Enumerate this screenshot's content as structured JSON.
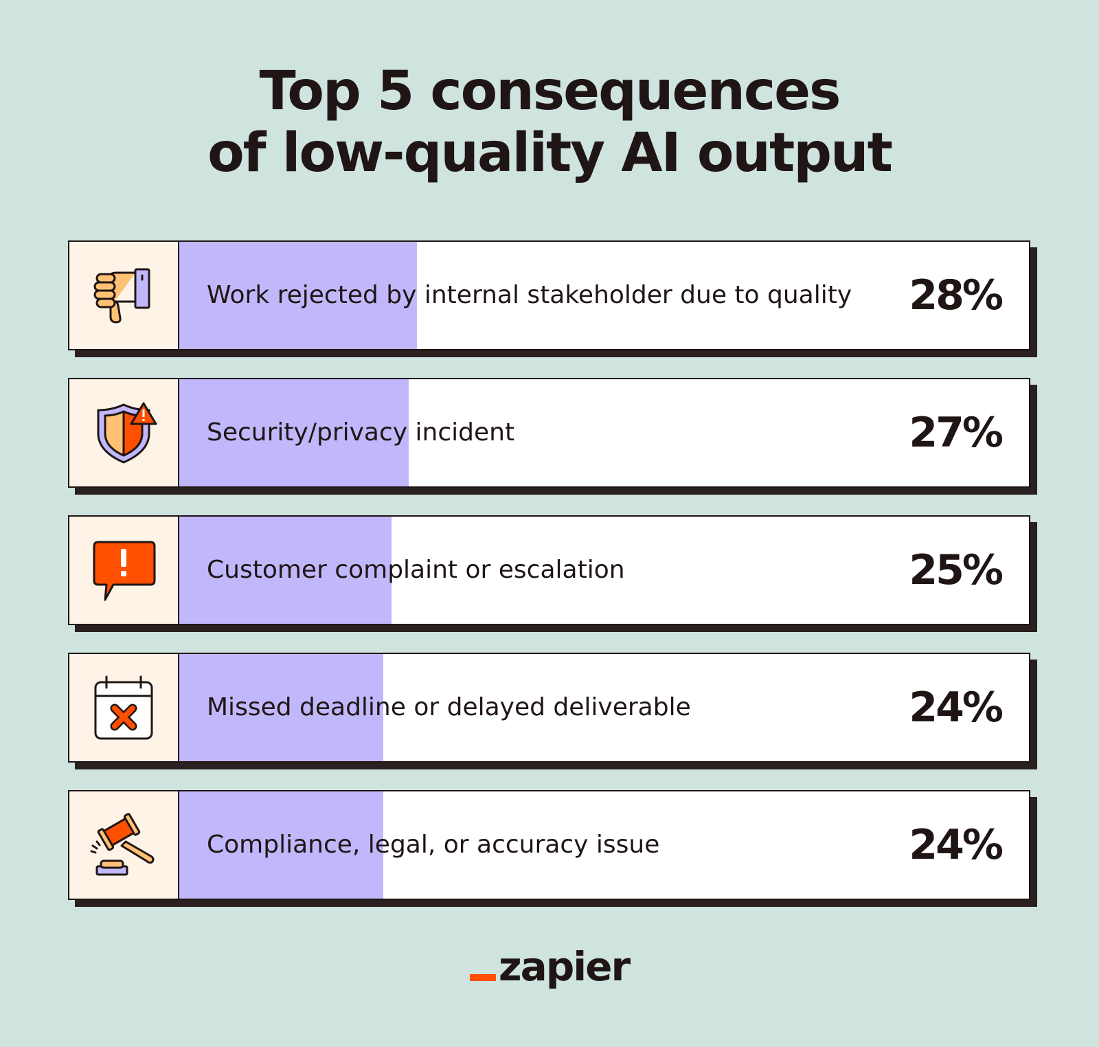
{
  "title_lines": [
    "Top 5 consequences",
    "of low-quality AI output"
  ],
  "colors": {
    "background": "#cfe3df",
    "bar": "#c1b8fb",
    "icon_cell": "#fdf3e6",
    "shadow": "#2b2020",
    "accent": "#ff4f00"
  },
  "chart_data": {
    "type": "bar",
    "orientation": "horizontal",
    "title": "Top 5 consequences of low-quality AI output",
    "categories": [
      "Work rejected by internal stakeholder due to quality",
      "Security/privacy incident",
      "Customer complaint or escalation",
      "Missed deadline or delayed deliverable",
      "Compliance, legal, or accuracy issue"
    ],
    "values": [
      28,
      27,
      25,
      24,
      24
    ],
    "value_labels": [
      "28%",
      "27%",
      "25%",
      "24%",
      "24%"
    ],
    "icons": [
      "thumbs-down-icon",
      "shield-warning-icon",
      "alert-speech-bubble-icon",
      "calendar-x-icon",
      "gavel-icon"
    ],
    "xlim": [
      0,
      100
    ]
  },
  "logo": {
    "text": "zapier"
  }
}
